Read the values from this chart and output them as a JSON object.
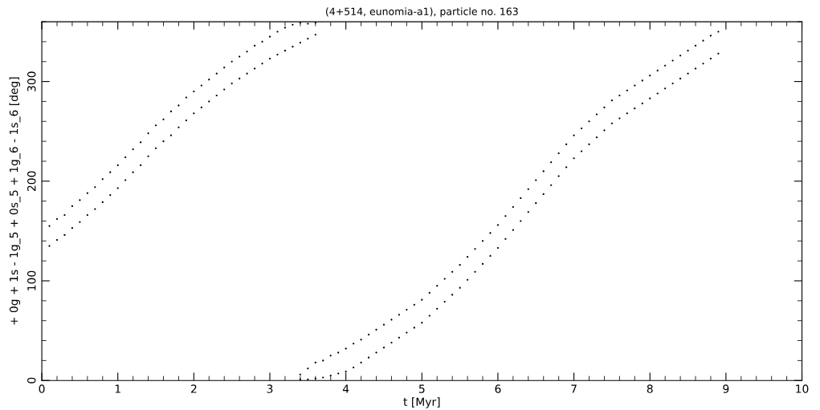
{
  "chart_data": {
    "type": "scatter",
    "title": "(4+514, eunomia-a1), particle no. 163",
    "xlabel": "t [Myr]",
    "ylabel": "+ 0g + 1s - 1g_5 + 0s_5 + 1g_6 - 1s_6 [deg]",
    "xlim": [
      0,
      10
    ],
    "ylim": [
      0,
      360
    ],
    "xticks": [
      0,
      1,
      2,
      3,
      4,
      5,
      6,
      7,
      8,
      9,
      10
    ],
    "yticks": [
      0,
      100,
      200,
      300
    ],
    "grid": false,
    "legend": false,
    "marker": "circle",
    "series": [
      {
        "color": "#000000",
        "x": [
          0.1,
          0.1,
          0.2,
          0.2,
          0.3,
          0.3,
          0.4,
          0.4,
          0.5,
          0.5,
          0.6,
          0.6,
          0.7,
          0.7,
          0.8,
          0.8,
          0.9,
          0.9,
          1.0,
          1.0,
          1.1,
          1.1,
          1.2,
          1.2,
          1.3,
          1.3,
          1.4,
          1.4,
          1.5,
          1.5,
          1.6,
          1.6,
          1.7,
          1.7,
          1.8,
          1.8,
          1.9,
          1.9,
          2.0,
          2.0,
          2.1,
          2.1,
          2.2,
          2.2,
          2.3,
          2.3,
          2.4,
          2.4,
          2.5,
          2.5,
          2.6,
          2.6,
          2.7,
          2.7,
          2.8,
          2.8,
          2.9,
          2.9,
          3.0,
          3.0,
          3.1,
          3.1,
          3.2,
          3.2,
          3.3,
          3.3,
          3.4,
          3.4,
          3.5,
          3.5,
          3.6,
          3.6
        ],
        "values": [
          135,
          155,
          141,
          162,
          146,
          166,
          153,
          175,
          159,
          181,
          166,
          188,
          172,
          194,
          179,
          202,
          186,
          209,
          193,
          216,
          201,
          224,
          209,
          232,
          216,
          239,
          225,
          248,
          233,
          256,
          240,
          262,
          246,
          270,
          254,
          276,
          261,
          284,
          268,
          290,
          274,
          296,
          280,
          302,
          286,
          308,
          292,
          314,
          298,
          320,
          303,
          325,
          308,
          330,
          313,
          336,
          318,
          340,
          323,
          345,
          327,
          350,
          331,
          354,
          335,
          357,
          339,
          359,
          343,
          358,
          347,
          359
        ]
      },
      {
        "color": "#000000",
        "x": [
          3.4,
          3.4,
          3.5,
          3.5,
          3.6,
          3.6,
          3.7,
          3.7,
          3.8,
          3.8,
          3.9,
          3.9,
          4.0,
          4.0,
          4.1,
          4.1,
          4.2,
          4.2,
          4.3,
          4.3,
          4.4,
          4.4,
          4.5,
          4.5,
          4.6,
          4.6,
          4.7,
          4.7,
          4.8,
          4.8,
          4.9,
          4.9,
          5.0,
          5.0,
          5.1,
          5.1,
          5.2,
          5.2,
          5.3,
          5.3,
          5.4,
          5.4,
          5.5,
          5.5,
          5.6,
          5.6,
          5.7,
          5.7,
          5.8,
          5.8,
          5.9,
          5.9,
          6.0,
          6.0,
          6.1,
          6.1,
          6.2,
          6.2,
          6.3,
          6.3,
          6.4,
          6.4,
          6.5,
          6.5,
          6.6,
          6.6,
          6.7,
          6.7,
          6.8,
          6.8,
          6.9,
          6.9,
          7.0,
          7.0,
          7.1,
          7.1,
          7.2,
          7.2,
          7.3,
          7.3,
          7.4,
          7.4,
          7.5,
          7.5,
          7.6,
          7.6,
          7.7,
          7.7,
          7.8,
          7.8,
          7.9,
          7.9,
          8.0,
          8.0,
          8.1,
          8.1,
          8.2,
          8.2,
          8.3,
          8.3,
          8.4,
          8.4,
          8.5,
          8.5,
          8.6,
          8.6,
          8.7,
          8.7,
          8.8,
          8.8,
          8.9,
          8.9
        ],
        "values": [
          1,
          6,
          1,
          12,
          2,
          18,
          3,
          20,
          5,
          25,
          7,
          28,
          9,
          32,
          13,
          37,
          18,
          41,
          23,
          46,
          28,
          51,
          33,
          56,
          38,
          61,
          43,
          66,
          48,
          71,
          53,
          76,
          58,
          81,
          65,
          88,
          72,
          95,
          79,
          102,
          86,
          109,
          93,
          116,
          101,
          124,
          109,
          132,
          117,
          140,
          125,
          148,
          133,
          156,
          142,
          165,
          151,
          174,
          160,
          183,
          169,
          192,
          178,
          201,
          187,
          210,
          196,
          219,
          205,
          228,
          214,
          237,
          223,
          246,
          230,
          253,
          237,
          260,
          244,
          267,
          251,
          274,
          258,
          281,
          263,
          286,
          268,
          291,
          273,
          296,
          278,
          301,
          283,
          306,
          288,
          311,
          293,
          316,
          298,
          321,
          303,
          326,
          308,
          331,
          313,
          336,
          318,
          341,
          323,
          346,
          328,
          350
        ]
      }
    ]
  }
}
